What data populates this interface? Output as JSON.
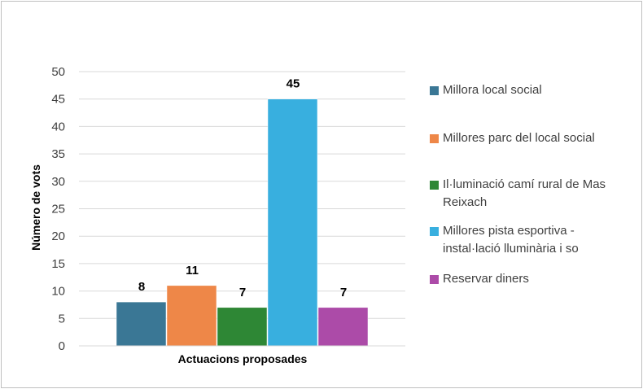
{
  "chart_data": {
    "type": "bar",
    "categories": [
      "Actuacions proposades"
    ],
    "xlabel": "Actuacions proposades",
    "ylabel": "Número de vots",
    "ylim": [
      0,
      50
    ],
    "yticks": [
      "0",
      "5",
      "10",
      "15",
      "20",
      "25",
      "30",
      "35",
      "40",
      "45",
      "50"
    ],
    "grid": true,
    "legend_position": "right",
    "series": [
      {
        "name": "Millora local social",
        "values": [
          8
        ],
        "color": "#3a7795"
      },
      {
        "name": "Millores parc del local social",
        "values": [
          11
        ],
        "color": "#ee8748"
      },
      {
        "name": "Il·luminació camí rural de Mas Reixach",
        "values": [
          7
        ],
        "color": "#2e8735"
      },
      {
        "name": "Millores pista esportiva - instal·lació lluminària i so",
        "values": [
          45
        ],
        "color": "#38afdf"
      },
      {
        "name": "Reservar diners",
        "values": [
          7
        ],
        "color": "#ac4ba8"
      }
    ]
  }
}
